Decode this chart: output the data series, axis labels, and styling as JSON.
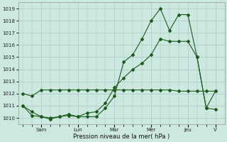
{
  "title": "Pression niveau de la mer( hPa )",
  "bg_color": "#cce8e0",
  "grid_color": "#aac8c0",
  "line_color": "#1a5c1a",
  "ylim": [
    1009.5,
    1019.5
  ],
  "yticks": [
    1010,
    1011,
    1012,
    1013,
    1014,
    1015,
    1016,
    1017,
    1018,
    1019
  ],
  "line1_x": [
    0,
    1,
    2,
    3,
    4,
    5,
    6,
    7,
    8,
    9,
    10,
    11,
    12,
    13,
    14,
    15,
    16,
    17,
    18,
    19,
    20,
    21
  ],
  "line1_y": [
    1011.0,
    1010.2,
    1010.1,
    1009.9,
    1010.1,
    1010.2,
    1010.1,
    1010.1,
    1010.1,
    1010.8,
    1011.8,
    1014.6,
    1015.2,
    1016.5,
    1018.0,
    1019.0,
    1017.2,
    1018.5,
    1018.5,
    1015.0,
    1010.8,
    1010.7
  ],
  "line2_x": [
    0,
    1,
    2,
    3,
    4,
    5,
    6,
    7,
    8,
    9,
    10,
    11,
    12,
    13,
    14,
    15,
    16,
    17,
    18,
    19,
    20,
    21
  ],
  "line2_y": [
    1012.0,
    1011.8,
    1012.3,
    1012.3,
    1012.3,
    1012.3,
    1012.3,
    1012.3,
    1012.3,
    1012.3,
    1012.3,
    1012.3,
    1012.3,
    1012.3,
    1012.3,
    1012.3,
    1012.3,
    1012.2,
    1012.2,
    1012.2,
    1012.2,
    1012.2
  ],
  "line3_x": [
    0,
    1,
    2,
    3,
    4,
    5,
    6,
    7,
    8,
    9,
    10,
    11,
    12,
    13,
    14,
    15,
    16,
    17,
    18,
    19,
    20,
    21
  ],
  "line3_y": [
    1011.0,
    1010.5,
    1010.1,
    1010.0,
    1010.1,
    1010.3,
    1010.1,
    1010.4,
    1010.5,
    1011.2,
    1012.5,
    1013.3,
    1014.0,
    1014.5,
    1015.2,
    1016.5,
    1016.3,
    1016.3,
    1016.3,
    1015.0,
    1010.8,
    1012.2
  ],
  "xtick_positions": [
    2,
    6,
    10,
    14,
    18,
    21
  ],
  "xtick_labels": [
    "Sam",
    "Lun",
    "Mar",
    "Mer",
    "Jeu",
    "V"
  ],
  "xlim": [
    -0.5,
    22.0
  ]
}
